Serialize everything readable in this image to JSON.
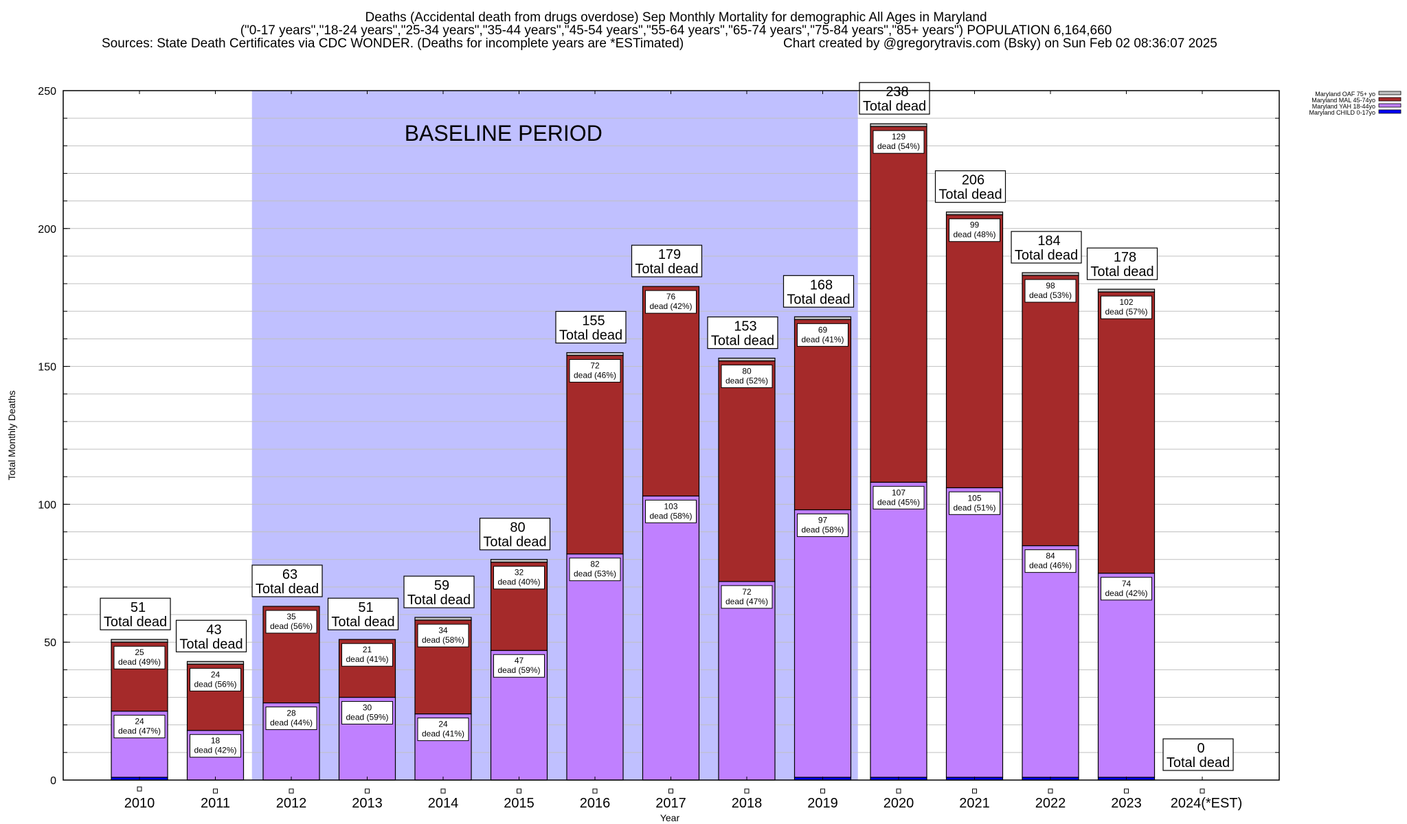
{
  "titles": {
    "line1": "Deaths (Accidental death from drugs overdose) Sep Monthly Mortality for demographic All Ages in Maryland",
    "line2": "(\"0-17 years\",\"18-24 years\",\"25-34 years\",\"35-44 years\",\"45-54 years\",\"55-64 years\",\"65-74 years\",\"75-84 years\",\"85+ years\") POPULATION 6,164,660",
    "sources": "Sources: State Death Certificates via CDC WONDER. (Deaths for incomplete years are *ESTimated)",
    "credit": "Chart created by @gregorytravis.com (Bsky) on Sun Feb 02 08:36:07 2025"
  },
  "chart_data": {
    "type": "bar",
    "stacked": true,
    "xlabel": "Year",
    "ylabel": "Total Monthly Deaths",
    "ylim": [
      0,
      250
    ],
    "yticks": [
      0,
      50,
      100,
      150,
      200,
      250
    ],
    "grid": true,
    "legend_position": "top-right",
    "annotation": "BASELINE PERIOD",
    "baseline_range": [
      "2012",
      "2019"
    ],
    "total_label_suffix": "Total dead",
    "segment_label_word": "dead",
    "categories": [
      "2010",
      "2011",
      "2012",
      "2013",
      "2014",
      "2015",
      "2016",
      "2017",
      "2018",
      "2019",
      "2020",
      "2021",
      "2022",
      "2023",
      "2024(*EST)"
    ],
    "totals": [
      51,
      43,
      63,
      51,
      59,
      80,
      155,
      179,
      153,
      168,
      238,
      206,
      184,
      178,
      0
    ],
    "series": [
      {
        "name": "Maryland CHILD 0-17yo",
        "color": "#0000ff",
        "values": [
          1,
          0,
          0,
          0,
          0,
          0,
          0,
          0,
          0,
          1,
          1,
          1,
          1,
          1,
          0
        ],
        "labels": [
          null,
          null,
          null,
          null,
          null,
          null,
          null,
          null,
          null,
          null,
          null,
          null,
          null,
          null,
          null
        ]
      },
      {
        "name": "Maryland YAH 18-44yo",
        "color": "#c080ff",
        "values": [
          24,
          18,
          28,
          30,
          24,
          47,
          82,
          103,
          72,
          97,
          107,
          105,
          84,
          74,
          0
        ],
        "labels": [
          "24|47%",
          "18|42%",
          "28|44%",
          "30|59%",
          "24|41%",
          "47|59%",
          "82|53%",
          "103|58%",
          "72|47%",
          "97|58%",
          "107|45%",
          "105|51%",
          "84|46%",
          "74|42%",
          null
        ]
      },
      {
        "name": "Maryland MAL 45-74yo",
        "color": "#a52a2a",
        "values": [
          25,
          24,
          35,
          21,
          34,
          32,
          72,
          76,
          80,
          69,
          129,
          99,
          98,
          102,
          0
        ],
        "labels": [
          "25|49%",
          "24|56%",
          "35|56%",
          "21|41%",
          "34|58%",
          "32|40%",
          "72|46%",
          "76|42%",
          "80|52%",
          "69|41%",
          "129|54%",
          "99|48%",
          "98|53%",
          "102|57%",
          null
        ]
      },
      {
        "name": "Maryland OAF 75+ yo",
        "color": "#c0c0c0",
        "values": [
          1,
          1,
          0,
          0,
          1,
          1,
          1,
          0,
          1,
          1,
          1,
          1,
          1,
          1,
          0
        ],
        "labels": [
          null,
          null,
          null,
          null,
          null,
          null,
          null,
          null,
          null,
          null,
          null,
          null,
          null,
          null,
          null
        ]
      }
    ]
  }
}
